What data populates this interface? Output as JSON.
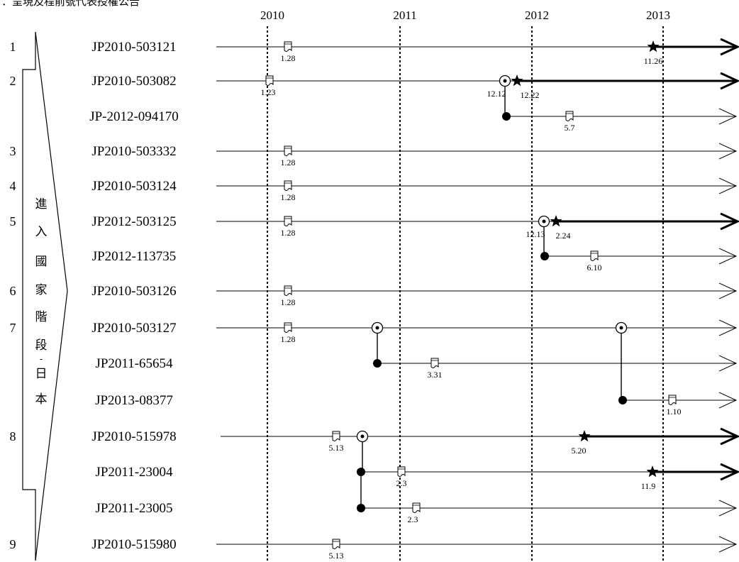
{
  "header_text": "：呈現及程前號代表授權公告",
  "years": [
    "2010",
    "2011",
    "2012",
    "2013"
  ],
  "bracket_label": [
    "進",
    "入",
    "國",
    "家",
    "階",
    "段",
    "-",
    "日",
    "本"
  ],
  "rows": [
    {
      "num": "1",
      "label": "JP2010-503121",
      "start": "left",
      "end": "bold",
      "docs": [
        {
          "date": "1.28"
        }
      ],
      "stars": [
        {
          "date": "11.26"
        }
      ]
    },
    {
      "num": "2",
      "label": "JP2010-503082",
      "start": "left",
      "end": "bold",
      "docs": [
        {
          "date": "1.23"
        }
      ],
      "stars": [
        {
          "date": "12.22"
        }
      ],
      "rings": [
        {
          "date": "12.12"
        }
      ]
    },
    {
      "num": "",
      "label": "JP-2012-094170",
      "start": "branch",
      "end": "thin",
      "docs": [
        {
          "date": "5.7"
        }
      ],
      "dots": [
        {}
      ]
    },
    {
      "num": "3",
      "label": "JP2010-503332",
      "start": "left",
      "end": "thin",
      "docs": [
        {
          "date": "1.28"
        }
      ]
    },
    {
      "num": "4",
      "label": "JP2010-503124",
      "start": "left",
      "end": "thin",
      "docs": [
        {
          "date": "1.28"
        }
      ]
    },
    {
      "num": "5",
      "label": "JP2012-503125",
      "start": "left",
      "end": "bold",
      "docs": [
        {
          "date": "1.28"
        }
      ],
      "stars": [
        {
          "date": "2.24"
        }
      ],
      "rings": [
        {
          "date": "12.13"
        }
      ]
    },
    {
      "num": "",
      "label": "JP2012-113735",
      "start": "branch",
      "end": "thin",
      "docs": [
        {
          "date": "6.10"
        }
      ],
      "dots": [
        {}
      ]
    },
    {
      "num": "6",
      "label": "JP2010-503126",
      "start": "left",
      "end": "thin",
      "docs": [
        {
          "date": "1.28"
        }
      ]
    },
    {
      "num": "7",
      "label": "JP2010-503127",
      "start": "left",
      "end": "thin",
      "docs": [
        {
          "date": "1.28"
        }
      ],
      "rings": [
        {
          "date": ""
        },
        {
          "date": ""
        }
      ]
    },
    {
      "num": "",
      "label": "JP2011-65654",
      "start": "branch",
      "end": "thin",
      "docs": [
        {
          "date": "3.31"
        }
      ],
      "dots": [
        {}
      ]
    },
    {
      "num": "",
      "label": "JP2013-08377",
      "start": "branch",
      "end": "thin",
      "docs": [
        {
          "date": "1.10"
        }
      ],
      "dots": [
        {}
      ]
    },
    {
      "num": "8",
      "label": "JP2010-515978",
      "start": "left",
      "end": "bold",
      "docs": [
        {
          "date": "5.13"
        }
      ],
      "stars": [
        {
          "date": "5.20"
        }
      ],
      "rings": [
        {
          "date": ""
        }
      ]
    },
    {
      "num": "",
      "label": "JP2011-23004",
      "start": "branch",
      "end": "bold",
      "docs": [
        {
          "date": "2.3"
        }
      ],
      "stars": [
        {
          "date": "11.9"
        }
      ],
      "dots": [
        {}
      ]
    },
    {
      "num": "",
      "label": "JP2011-23005",
      "start": "branch",
      "end": "thin",
      "docs": [
        {
          "date": "2.3"
        }
      ],
      "dots": [
        {}
      ]
    },
    {
      "num": "9",
      "label": "JP2010-515980",
      "start": "left",
      "end": "thin",
      "docs": [
        {
          "date": "5.13"
        }
      ]
    }
  ]
}
